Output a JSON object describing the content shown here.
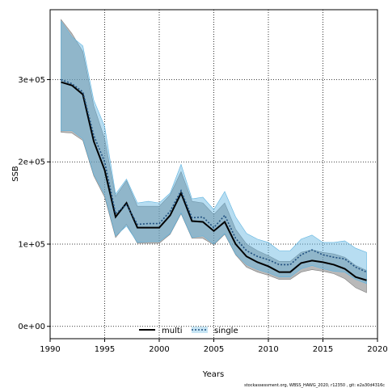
{
  "chart_data": {
    "type": "area",
    "xlabel": "Years",
    "ylabel": "SSB",
    "xlim": [
      1990,
      2020
    ],
    "ylim": [
      -15000,
      385000
    ],
    "xticks": [
      1990,
      1995,
      2000,
      2005,
      2010,
      2015,
      2020
    ],
    "xtick_labels": [
      "1990",
      "1995",
      "2000",
      "2005",
      "2010",
      "2015",
      "2020"
    ],
    "yticks": [
      0,
      100000,
      200000,
      300000
    ],
    "ytick_labels": [
      "0e+00",
      "1e+05",
      "2e+05",
      "3e+05"
    ],
    "grid": true,
    "legend_position": "bottom-center",
    "x": [
      1991,
      1992,
      1993,
      1994,
      1995,
      1996,
      1997,
      1998,
      1999,
      2000,
      2001,
      2002,
      2003,
      2004,
      2005,
      2006,
      2007,
      2008,
      2009,
      2010,
      2011,
      2012,
      2013,
      2014,
      2015,
      2016,
      2017,
      2018,
      2019
    ],
    "series": [
      {
        "name": "multi",
        "color": "#000000",
        "band_color": "#7f7f7f",
        "values": [
          297000,
          293000,
          282000,
          225000,
          190000,
          133000,
          150000,
          120000,
          120000,
          120000,
          135000,
          162000,
          128000,
          127000,
          116000,
          127000,
          100000,
          85000,
          78000,
          73000,
          66000,
          66000,
          77000,
          80000,
          78000,
          75000,
          70000,
          60000,
          56000
        ],
        "lower": [
          236000,
          235000,
          226000,
          183000,
          157000,
          108000,
          124000,
          101000,
          101000,
          101000,
          112000,
          137000,
          107000,
          107000,
          99000,
          112000,
          87000,
          72000,
          66000,
          62000,
          57000,
          57000,
          66000,
          69000,
          67000,
          64000,
          58000,
          47000,
          41000
        ],
        "upper": [
          373000,
          356000,
          334000,
          268000,
          228000,
          158000,
          177000,
          146000,
          146000,
          146000,
          160000,
          188000,
          152000,
          150000,
          136000,
          150000,
          118000,
          100000,
          92000,
          86000,
          79000,
          79000,
          90000,
          93000,
          90000,
          88000,
          84000,
          74000,
          68000
        ]
      },
      {
        "name": "single",
        "color": "#1f4f7f",
        "band_color": "#5fb4e0",
        "values": [
          300000,
          295000,
          285000,
          232000,
          200000,
          137000,
          148000,
          124000,
          125000,
          125000,
          140000,
          165000,
          132000,
          133000,
          120000,
          135000,
          107000,
          92000,
          85000,
          81000,
          75000,
          75000,
          87000,
          93000,
          87000,
          84000,
          82000,
          72000,
          66000
        ],
        "lower": [
          238000,
          238000,
          228000,
          185000,
          160000,
          110000,
          122000,
          102000,
          103000,
          103000,
          113000,
          138000,
          108000,
          110000,
          100000,
          113000,
          88000,
          75000,
          69000,
          65000,
          60000,
          60000,
          70000,
          74000,
          70000,
          67000,
          66000,
          57000,
          52000
        ],
        "upper": [
          371000,
          352000,
          341000,
          275000,
          243000,
          161000,
          179000,
          150000,
          152000,
          150000,
          162000,
          197000,
          155000,
          157000,
          142000,
          164000,
          133000,
          113000,
          106000,
          102000,
          92000,
          92000,
          106000,
          111000,
          102000,
          102000,
          104000,
          95000,
          90000
        ]
      }
    ]
  },
  "footnote": "stockassessment.org, WBSS_HAWG_2020, r12350 , git: e2a30d4316c"
}
